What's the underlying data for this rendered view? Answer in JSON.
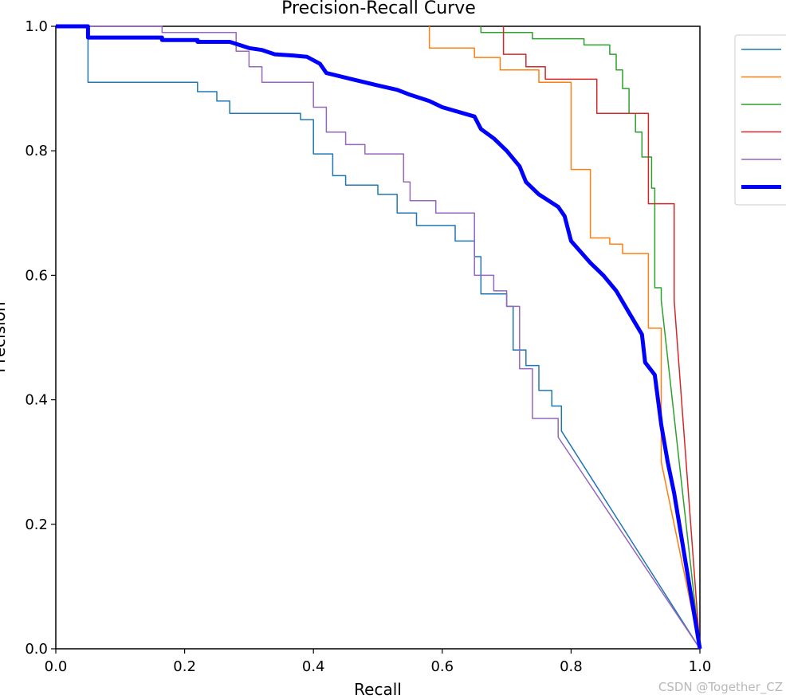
{
  "watermark": "CSDN @Together_CZ",
  "chart_data": {
    "type": "line",
    "title": "Precision-Recall Curve",
    "xlabel": "Recall",
    "ylabel": "Precision",
    "xlim": [
      0,
      1
    ],
    "ylim": [
      0,
      1
    ],
    "xticks": [
      "0.0",
      "0.2",
      "0.4",
      "0.6",
      "0.8",
      "1.0"
    ],
    "yticks": [
      "0.0",
      "0.2",
      "0.4",
      "0.6",
      "0.8",
      "1.0"
    ],
    "grid": false,
    "legend_position": "upper right, outside plot",
    "series": [
      {
        "color": "#1f77b4",
        "line_width": 1.5,
        "points": [
          [
            0,
            1
          ],
          [
            0.05,
            1
          ],
          [
            0.05,
            0.91
          ],
          [
            0.22,
            0.91
          ],
          [
            0.22,
            0.895
          ],
          [
            0.25,
            0.895
          ],
          [
            0.25,
            0.88
          ],
          [
            0.27,
            0.88
          ],
          [
            0.27,
            0.86
          ],
          [
            0.38,
            0.86
          ],
          [
            0.38,
            0.85
          ],
          [
            0.4,
            0.85
          ],
          [
            0.4,
            0.795
          ],
          [
            0.43,
            0.795
          ],
          [
            0.43,
            0.76
          ],
          [
            0.45,
            0.76
          ],
          [
            0.45,
            0.745
          ],
          [
            0.5,
            0.745
          ],
          [
            0.5,
            0.73
          ],
          [
            0.53,
            0.73
          ],
          [
            0.53,
            0.7
          ],
          [
            0.56,
            0.7
          ],
          [
            0.56,
            0.68
          ],
          [
            0.62,
            0.68
          ],
          [
            0.62,
            0.655
          ],
          [
            0.65,
            0.655
          ],
          [
            0.65,
            0.63
          ],
          [
            0.66,
            0.63
          ],
          [
            0.66,
            0.57
          ],
          [
            0.7,
            0.57
          ],
          [
            0.7,
            0.55
          ],
          [
            0.71,
            0.55
          ],
          [
            0.71,
            0.48
          ],
          [
            0.73,
            0.48
          ],
          [
            0.73,
            0.455
          ],
          [
            0.75,
            0.455
          ],
          [
            0.75,
            0.415
          ],
          [
            0.77,
            0.415
          ],
          [
            0.77,
            0.39
          ],
          [
            0.785,
            0.39
          ],
          [
            0.785,
            0.35
          ],
          [
            1.0,
            0.0
          ]
        ]
      },
      {
        "color": "#ff7f0e",
        "line_width": 1.5,
        "points": [
          [
            0.58,
            1
          ],
          [
            0.58,
            0.965
          ],
          [
            0.65,
            0.965
          ],
          [
            0.65,
            0.95
          ],
          [
            0.69,
            0.95
          ],
          [
            0.69,
            0.93
          ],
          [
            0.75,
            0.93
          ],
          [
            0.75,
            0.91
          ],
          [
            0.8,
            0.91
          ],
          [
            0.8,
            0.77
          ],
          [
            0.83,
            0.77
          ],
          [
            0.83,
            0.66
          ],
          [
            0.86,
            0.66
          ],
          [
            0.86,
            0.65
          ],
          [
            0.88,
            0.65
          ],
          [
            0.88,
            0.635
          ],
          [
            0.92,
            0.635
          ],
          [
            0.92,
            0.515
          ],
          [
            0.94,
            0.515
          ],
          [
            0.94,
            0.3
          ],
          [
            1.0,
            0.0
          ]
        ]
      },
      {
        "color": "#2ca02c",
        "line_width": 1.5,
        "points": [
          [
            0.66,
            1
          ],
          [
            0.66,
            0.99
          ],
          [
            0.74,
            0.99
          ],
          [
            0.74,
            0.98
          ],
          [
            0.82,
            0.98
          ],
          [
            0.82,
            0.97
          ],
          [
            0.86,
            0.97
          ],
          [
            0.86,
            0.955
          ],
          [
            0.87,
            0.955
          ],
          [
            0.87,
            0.93
          ],
          [
            0.88,
            0.93
          ],
          [
            0.88,
            0.9
          ],
          [
            0.89,
            0.9
          ],
          [
            0.89,
            0.86
          ],
          [
            0.9,
            0.86
          ],
          [
            0.9,
            0.83
          ],
          [
            0.91,
            0.83
          ],
          [
            0.91,
            0.79
          ],
          [
            0.925,
            0.79
          ],
          [
            0.925,
            0.74
          ],
          [
            0.93,
            0.74
          ],
          [
            0.93,
            0.58
          ],
          [
            0.94,
            0.58
          ],
          [
            0.94,
            0.56
          ],
          [
            1.0,
            0.0
          ]
        ]
      },
      {
        "color": "#d62728",
        "line_width": 1.5,
        "points": [
          [
            0.695,
            1
          ],
          [
            0.695,
            0.955
          ],
          [
            0.73,
            0.955
          ],
          [
            0.73,
            0.935
          ],
          [
            0.76,
            0.935
          ],
          [
            0.76,
            0.915
          ],
          [
            0.84,
            0.915
          ],
          [
            0.84,
            0.86
          ],
          [
            0.92,
            0.86
          ],
          [
            0.92,
            0.715
          ],
          [
            0.96,
            0.715
          ],
          [
            0.96,
            0.56
          ],
          [
            1.0,
            0.0
          ]
        ]
      },
      {
        "color": "#9467bd",
        "line_width": 1.5,
        "points": [
          [
            0,
            1
          ],
          [
            0.165,
            1
          ],
          [
            0.165,
            0.99
          ],
          [
            0.28,
            0.99
          ],
          [
            0.28,
            0.96
          ],
          [
            0.3,
            0.96
          ],
          [
            0.3,
            0.935
          ],
          [
            0.32,
            0.935
          ],
          [
            0.32,
            0.91
          ],
          [
            0.4,
            0.91
          ],
          [
            0.4,
            0.87
          ],
          [
            0.42,
            0.87
          ],
          [
            0.42,
            0.83
          ],
          [
            0.45,
            0.83
          ],
          [
            0.45,
            0.81
          ],
          [
            0.48,
            0.81
          ],
          [
            0.48,
            0.795
          ],
          [
            0.54,
            0.795
          ],
          [
            0.54,
            0.75
          ],
          [
            0.55,
            0.75
          ],
          [
            0.55,
            0.72
          ],
          [
            0.59,
            0.72
          ],
          [
            0.59,
            0.7
          ],
          [
            0.65,
            0.7
          ],
          [
            0.65,
            0.6
          ],
          [
            0.68,
            0.6
          ],
          [
            0.68,
            0.575
          ],
          [
            0.7,
            0.575
          ],
          [
            0.7,
            0.55
          ],
          [
            0.72,
            0.55
          ],
          [
            0.72,
            0.45
          ],
          [
            0.74,
            0.45
          ],
          [
            0.74,
            0.37
          ],
          [
            0.78,
            0.37
          ],
          [
            0.78,
            0.34
          ],
          [
            1.0,
            0.0
          ]
        ]
      },
      {
        "color": "#0000ff",
        "line_width": 5,
        "points": [
          [
            0,
            1
          ],
          [
            0.05,
            1
          ],
          [
            0.05,
            0.982
          ],
          [
            0.165,
            0.982
          ],
          [
            0.165,
            0.978
          ],
          [
            0.22,
            0.978
          ],
          [
            0.22,
            0.975
          ],
          [
            0.27,
            0.975
          ],
          [
            0.3,
            0.965
          ],
          [
            0.32,
            0.962
          ],
          [
            0.34,
            0.955
          ],
          [
            0.37,
            0.953
          ],
          [
            0.39,
            0.951
          ],
          [
            0.41,
            0.94
          ],
          [
            0.42,
            0.925
          ],
          [
            0.46,
            0.915
          ],
          [
            0.5,
            0.905
          ],
          [
            0.53,
            0.898
          ],
          [
            0.55,
            0.89
          ],
          [
            0.58,
            0.88
          ],
          [
            0.6,
            0.87
          ],
          [
            0.65,
            0.855
          ],
          [
            0.66,
            0.835
          ],
          [
            0.68,
            0.82
          ],
          [
            0.7,
            0.8
          ],
          [
            0.72,
            0.775
          ],
          [
            0.73,
            0.75
          ],
          [
            0.75,
            0.73
          ],
          [
            0.78,
            0.71
          ],
          [
            0.79,
            0.695
          ],
          [
            0.8,
            0.655
          ],
          [
            0.83,
            0.62
          ],
          [
            0.85,
            0.6
          ],
          [
            0.87,
            0.575
          ],
          [
            0.89,
            0.54
          ],
          [
            0.91,
            0.505
          ],
          [
            0.915,
            0.46
          ],
          [
            0.93,
            0.44
          ],
          [
            0.94,
            0.36
          ],
          [
            0.95,
            0.3
          ],
          [
            0.96,
            0.25
          ],
          [
            1.0,
            0.0
          ]
        ]
      }
    ]
  }
}
